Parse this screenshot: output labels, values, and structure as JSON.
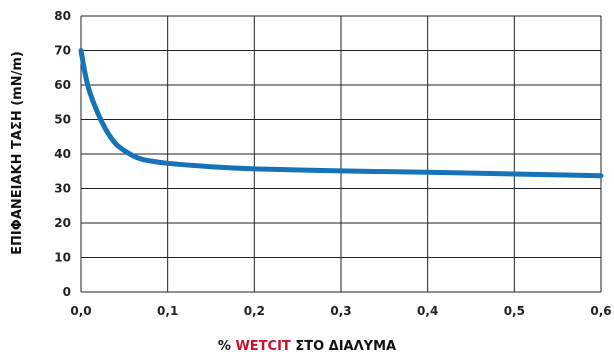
{
  "chart_data": {
    "type": "line",
    "xlabel_prefix": "%",
    "xlabel_brand": "WETCIT",
    "xlabel_suffix": "ΣΤΟ ΔΙΑΛΥΜΑ",
    "ylabel": "ΕΠΙΦΑΝΕΙΑΚΗ ΤΑΣΗ (mN/m)",
    "xlim": [
      0,
      0.6
    ],
    "ylim": [
      0,
      80
    ],
    "xticks": [
      "0,0",
      "0,1",
      "0,2",
      "0,3",
      "0,4",
      "0,5",
      "0,6"
    ],
    "yticks": [
      "0",
      "10",
      "20",
      "30",
      "40",
      "50",
      "60",
      "70",
      "80"
    ],
    "grid": true,
    "series": [
      {
        "color": "#1673b8",
        "x": [
          0.0,
          0.005,
          0.01,
          0.02,
          0.03,
          0.04,
          0.05,
          0.06,
          0.07,
          0.08,
          0.1,
          0.15,
          0.2,
          0.3,
          0.4,
          0.5,
          0.6
        ],
        "y": [
          70,
          63,
          58,
          51.5,
          46.5,
          43,
          41,
          39.5,
          38.5,
          38,
          37.3,
          36.3,
          35.7,
          35.1,
          34.7,
          34.2,
          33.7
        ]
      }
    ]
  },
  "colors": {
    "grid": "#222222",
    "brand": "#c8102e"
  }
}
